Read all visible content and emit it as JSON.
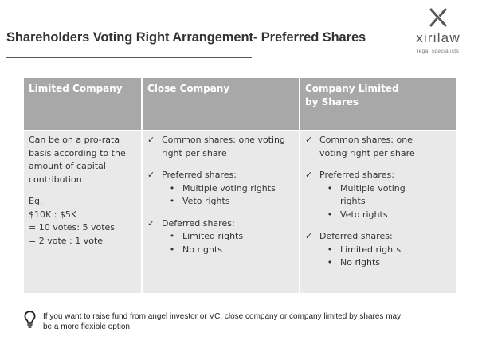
{
  "title": "Shareholders Voting Right Arrangement- Preferred Shares",
  "logo": {
    "name": "xirilaw",
    "tagline": "legal specialists"
  },
  "columns": [
    {
      "header": [
        "Limited Company"
      ]
    },
    {
      "header": [
        "Close Company"
      ]
    },
    {
      "header": [
        "Company Limited",
        "by Shares"
      ]
    }
  ],
  "limited": {
    "description": [
      "Can be on a pro-rata",
      "basis according to the",
      "amount of capital",
      "contribution"
    ],
    "example_label": "Eg.",
    "example_lines": [
      "$10K : $5K",
      "= 10 votes: 5 votes",
      "= 2 vote : 1 vote"
    ]
  },
  "close": {
    "check_glyph": "✓",
    "bullet_glyph": "•",
    "common": [
      "Common shares: one voting",
      "right per share"
    ],
    "preferred": "Preferred shares:",
    "preferred_items": [
      "Multiple voting rights",
      "Veto rights"
    ],
    "deferred": "Deferred shares:",
    "deferred_items": [
      "Limited rights",
      "No rights"
    ]
  },
  "cls": {
    "check_glyph": "✓",
    "bullet_glyph": "•",
    "common": [
      "Common shares: one",
      "voting right per share"
    ],
    "preferred": "Preferred shares:",
    "preferred_items": [
      [
        "Multiple voting",
        "rights"
      ],
      [
        "Veto rights"
      ]
    ],
    "deferred": "Deferred shares:",
    "deferred_items": [
      "Limited rights",
      "No rights"
    ]
  },
  "note": {
    "icon": "lightbulb-icon",
    "lines": [
      "If you want to raise fund from angel investor or VC, close company or company limited by shares may",
      "be a more flexible option."
    ]
  },
  "colors": {
    "header_bg": "#a8a8a8",
    "cell_bg": "#e9e9e9",
    "title": "#333333"
  }
}
